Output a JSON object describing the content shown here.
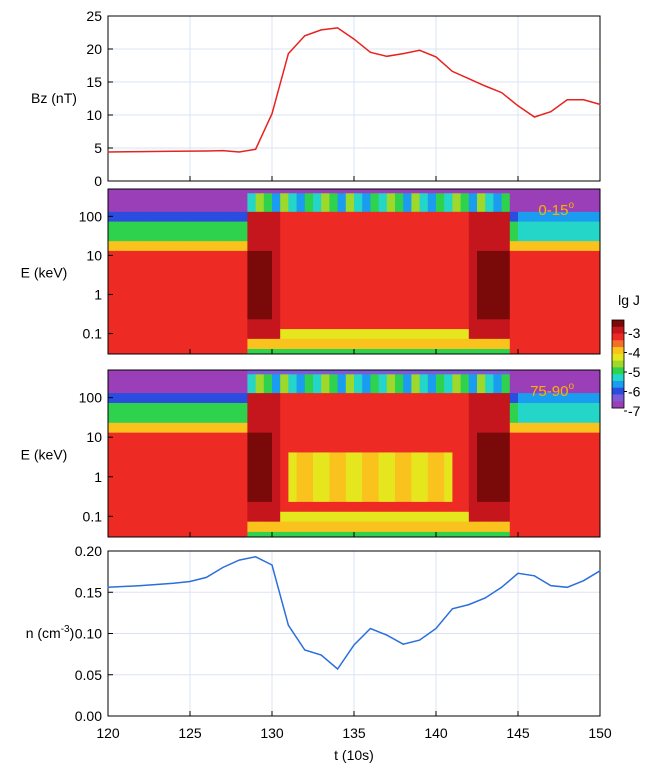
{
  "chart_data": [
    {
      "type": "line",
      "ylabel": "Bz (nT)",
      "xlim": [
        120,
        150
      ],
      "ylim": [
        0,
        25
      ],
      "yticks": [
        0,
        5,
        10,
        15,
        20,
        25
      ],
      "xticks": [
        120,
        125,
        130,
        135,
        140,
        145,
        150
      ],
      "grid": true,
      "color": "#e8221c",
      "series": [
        {
          "x": [
            120,
            122,
            124,
            126,
            127,
            128,
            129,
            130,
            131,
            132,
            133,
            134,
            135,
            136,
            137,
            138,
            139,
            140,
            141,
            142,
            143,
            144,
            145,
            146,
            147,
            148,
            149,
            150
          ],
          "y": [
            4.4,
            4.45,
            4.5,
            4.55,
            4.6,
            4.4,
            4.8,
            10.2,
            19.3,
            22.0,
            22.9,
            23.2,
            21.5,
            19.5,
            18.9,
            19.3,
            19.8,
            18.8,
            16.6,
            15.5,
            14.4,
            13.4,
            11.4,
            9.7,
            10.5,
            12.3,
            12.3,
            11.6
          ]
        }
      ]
    },
    {
      "type": "heatmap",
      "ylabel": "E (keV)",
      "yscale": "log",
      "yticks": [
        "100",
        "10",
        "1",
        "0.1"
      ],
      "ylim": [
        0.03,
        500
      ],
      "xlim": [
        120,
        150
      ],
      "annotation": "0-15",
      "annotation_sup": "o",
      "source": "model",
      "band_boundary": "low",
      "field": "E_low"
    },
    {
      "type": "heatmap",
      "ylabel": "E (keV)",
      "yscale": "log",
      "yticks": [
        "100",
        "10",
        "1",
        "0.1"
      ],
      "ylim": [
        0.03,
        500
      ],
      "xlim": [
        120,
        150
      ],
      "annotation": "75-90",
      "annotation_sup": "o",
      "source": "model",
      "field": "E_high"
    },
    {
      "type": "line",
      "ylabel": "n (cm",
      "ylabel_sup": "-3",
      "ylabel_end": ")",
      "xlabel": "t (10s)",
      "xlim": [
        120,
        150
      ],
      "ylim": [
        0,
        0.2
      ],
      "yticks": [
        "0.00",
        "0.05",
        "0.10",
        "0.15",
        "0.20"
      ],
      "xticks": [
        "120",
        "125",
        "130",
        "135",
        "140",
        "145",
        "150"
      ],
      "grid": true,
      "color": "#2a6fdb",
      "series": [
        {
          "x": [
            120,
            122,
            124,
            125,
            126,
            127,
            128,
            129,
            130,
            131,
            132,
            133,
            134,
            135,
            136,
            137,
            138,
            139,
            140,
            141,
            142,
            143,
            144,
            145,
            146,
            147,
            148,
            149,
            150
          ],
          "y": [
            0.156,
            0.158,
            0.161,
            0.163,
            0.168,
            0.18,
            0.189,
            0.193,
            0.183,
            0.11,
            0.08,
            0.074,
            0.057,
            0.086,
            0.106,
            0.098,
            0.087,
            0.092,
            0.106,
            0.13,
            0.135,
            0.143,
            0.156,
            0.173,
            0.17,
            0.158,
            0.156,
            0.164,
            0.176
          ]
        }
      ]
    }
  ],
  "colorbar": {
    "title": "lg J",
    "ticks": [
      "-3",
      "-4",
      "-5",
      "-6",
      "-7"
    ],
    "colors": [
      "#7a0a0a",
      "#c4161c",
      "#ee2a24",
      "#f36f2a",
      "#f9c21c",
      "#e6e61e",
      "#9ed82a",
      "#2fd24c",
      "#23d6c8",
      "#1a9cf0",
      "#2a4de0",
      "#7b5cd6",
      "#9b3fb8"
    ]
  }
}
